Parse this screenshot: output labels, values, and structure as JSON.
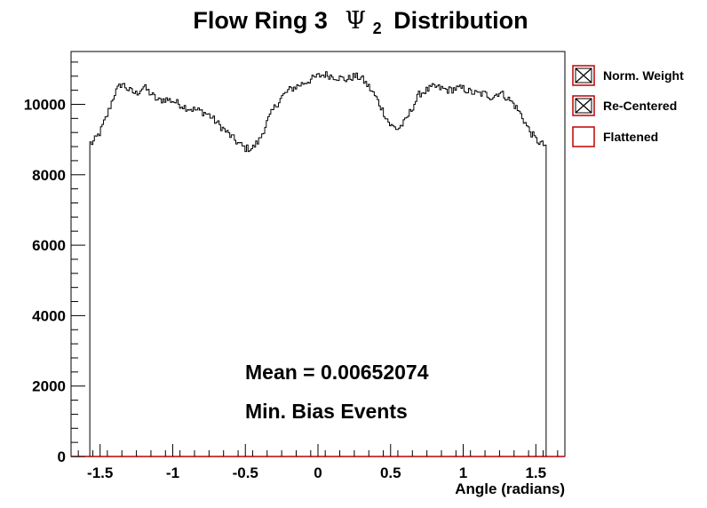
{
  "chart_data": {
    "type": "histogram",
    "title_main": "Flow Ring 3",
    "title_symbol": "Ψ",
    "title_subscript": "2",
    "title_rest": "Distribution",
    "xlabel": "Angle (radians)",
    "ylabel": "",
    "xlim": [
      -1.7,
      1.7
    ],
    "ylim": [
      0,
      11500
    ],
    "x_ticks": [
      -1.5,
      -1,
      -0.5,
      0,
      0.5,
      1,
      1.5
    ],
    "x_tick_labels": [
      "-1.5",
      "-1",
      "-0.5",
      "0",
      "0.5",
      "1",
      "1.5"
    ],
    "y_ticks": [
      0,
      2000,
      4000,
      6000,
      8000,
      10000
    ],
    "y_tick_labels": [
      "0",
      "2000",
      "4000",
      "6000",
      "8000",
      "10000"
    ],
    "grid": false,
    "legend_position": "right, outside plot",
    "legend": [
      {
        "label": "Norm. Weight",
        "marker": "box-with-x"
      },
      {
        "label": "Re-Centered",
        "marker": "box-with-x"
      },
      {
        "label": "Flattened",
        "marker": "red-box"
      }
    ],
    "annotations": [
      "Mean = 0.00652074",
      "Min. Bias Events"
    ],
    "line_color": "#000000",
    "series": [
      {
        "x_range": [
          -1.5708,
          1.5708
        ],
        "x": [
          -1.55,
          -1.5,
          -1.45,
          -1.4,
          -1.35,
          -1.3,
          -1.25,
          -1.2,
          -1.15,
          -1.1,
          -1.05,
          -1.0,
          -0.95,
          -0.9,
          -0.85,
          -0.8,
          -0.75,
          -0.7,
          -0.65,
          -0.6,
          -0.55,
          -0.5,
          -0.45,
          -0.4,
          -0.35,
          -0.3,
          -0.25,
          -0.2,
          -0.15,
          -0.1,
          -0.05,
          0.0,
          0.05,
          0.1,
          0.15,
          0.2,
          0.25,
          0.3,
          0.35,
          0.4,
          0.45,
          0.5,
          0.55,
          0.6,
          0.65,
          0.7,
          0.75,
          0.8,
          0.85,
          0.9,
          0.95,
          1.0,
          1.05,
          1.1,
          1.15,
          1.2,
          1.25,
          1.3,
          1.35,
          1.4,
          1.45,
          1.5,
          1.55
        ],
        "values": [
          8900,
          9200,
          9700,
          10300,
          10600,
          10400,
          10300,
          10500,
          10300,
          10100,
          10150,
          10100,
          10000,
          9900,
          9850,
          9800,
          9700,
          9500,
          9300,
          9100,
          8900,
          8750,
          8750,
          9000,
          9500,
          9900,
          10200,
          10400,
          10500,
          10600,
          10700,
          10800,
          10850,
          10800,
          10750,
          10700,
          10800,
          10750,
          10500,
          10200,
          9800,
          9400,
          9300,
          9500,
          9900,
          10300,
          10400,
          10500,
          10450,
          10400,
          10450,
          10450,
          10350,
          10300,
          10300,
          10200,
          10350,
          10200,
          10000,
          9700,
          9300,
          9000,
          8850
        ]
      }
    ]
  }
}
